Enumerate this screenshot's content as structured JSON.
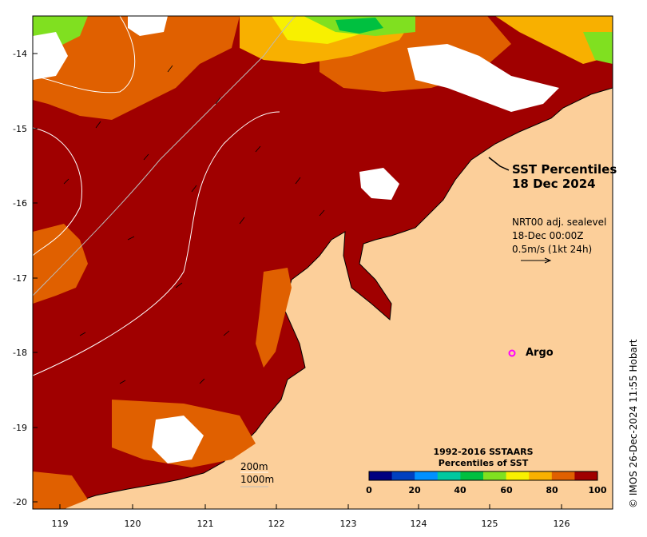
{
  "title": {
    "line1": "SST Percentiles",
    "line2": "18 Dec 2024"
  },
  "velocity_legend": {
    "line1": "NRT00 adj. sealevel",
    "line2": "18-Dec 00:00Z",
    "line3": "0.5m/s (1kt 24h)"
  },
  "argo_label": "Argo",
  "colorbar": {
    "title1": "1992-2016 SSTAARS",
    "title2": "Percentiles of SST",
    "ticks": [
      "0",
      "20",
      "40",
      "60",
      "80",
      "100"
    ],
    "colors": [
      "#000080",
      "#0040c0",
      "#0090ff",
      "#00c8a0",
      "#00c040",
      "#80e020",
      "#f8f000",
      "#f8b000",
      "#e06000",
      "#a00000"
    ]
  },
  "depth_contours": {
    "line1": "200m",
    "line2": "1000m"
  },
  "axes": {
    "x_ticks": [
      "119",
      "120",
      "121",
      "122",
      "123",
      "124",
      "125",
      "126"
    ],
    "y_ticks": [
      "-14",
      "-15",
      "-16",
      "-17",
      "-18",
      "-19",
      "-20"
    ]
  },
  "colors": {
    "land": "#fccf9a",
    "sst_main": "#a00000",
    "argo": "#ff00ff"
  },
  "credit": "© IMOS 26-Dec-2024 11:55 Hobart"
}
